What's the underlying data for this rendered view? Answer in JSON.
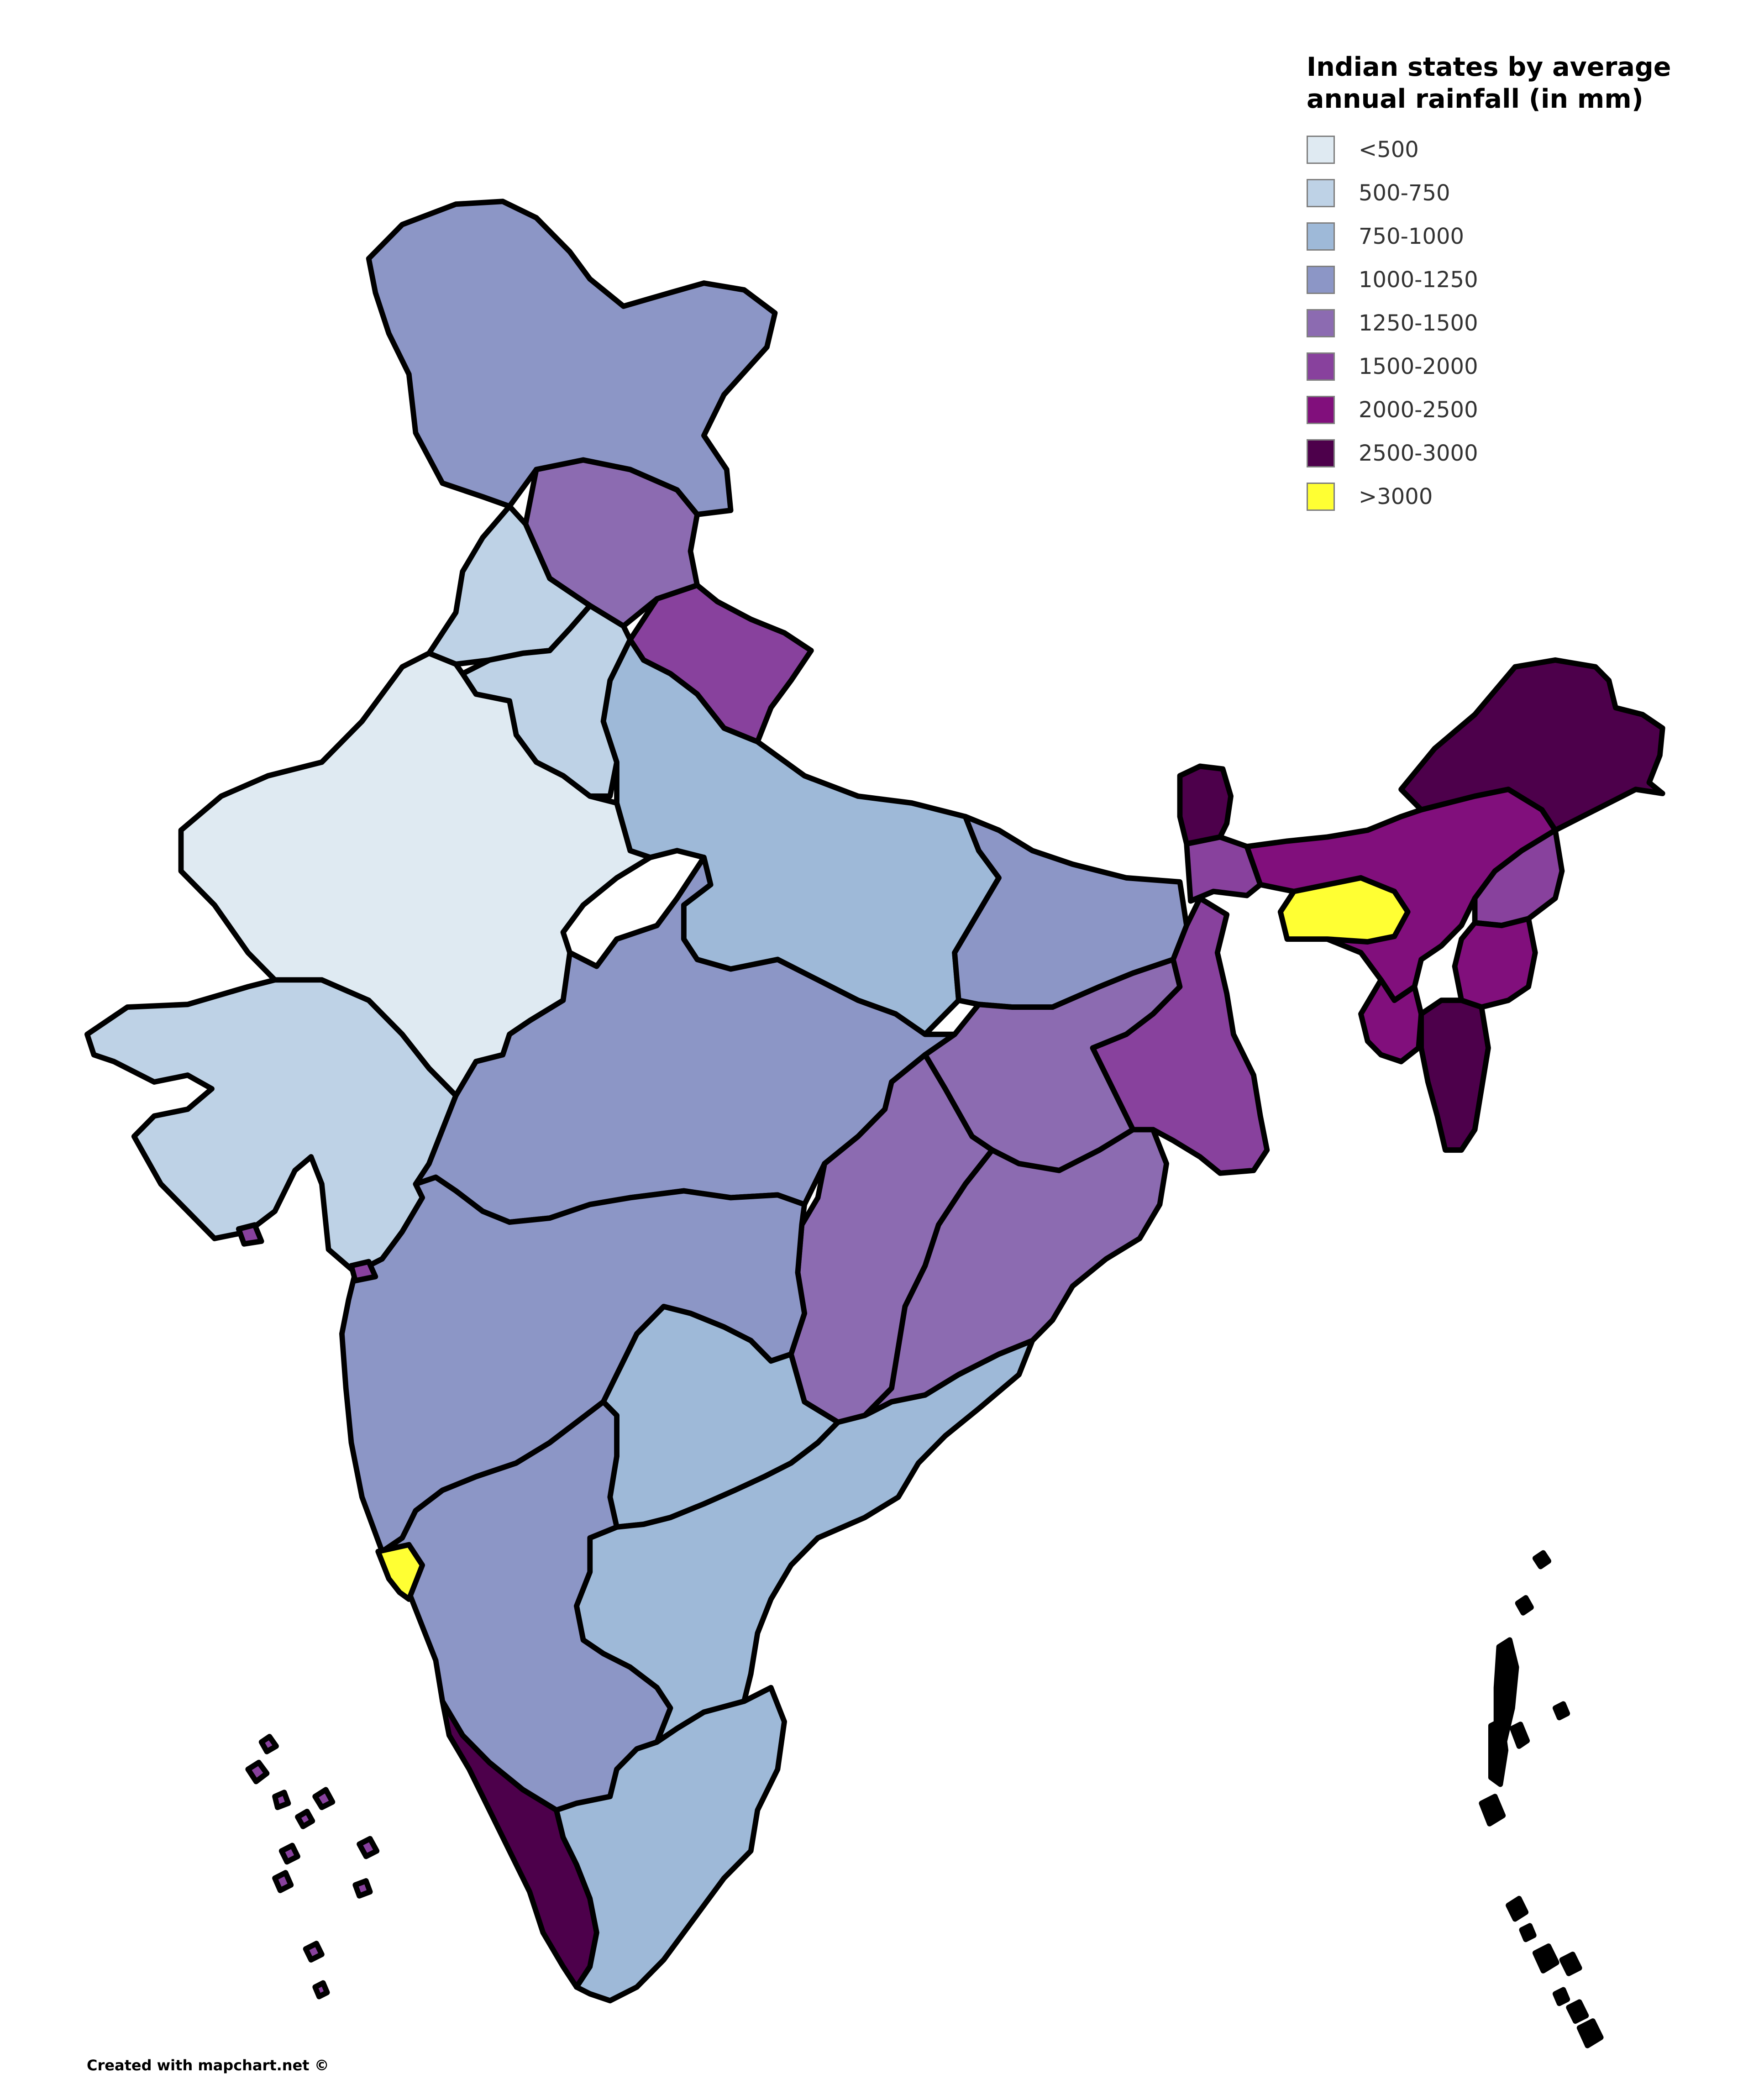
{
  "title": "Indian states by average annual rainfall (in mm)",
  "credit": "Created with mapchart.net ©",
  "legend": [
    {
      "label": "<500",
      "color": "#dfeaf2"
    },
    {
      "label": "500-750",
      "color": "#bed2e6"
    },
    {
      "label": "750-1000",
      "color": "#9eb9d8"
    },
    {
      "label": "1000-1250",
      "color": "#8c96c6"
    },
    {
      "label": "1250-1500",
      "color": "#8c6bb1"
    },
    {
      "label": "1500-2000",
      "color": "#88419d"
    },
    {
      "label": "2000-2500",
      "color": "#810f7c"
    },
    {
      "label": "2500-3000",
      "color": "#4d004b"
    },
    {
      "label": ">3000",
      "color": "#ffff33"
    }
  ],
  "regions": [
    {
      "name": "Jammu and Kashmir",
      "category": "1000-1250"
    },
    {
      "name": "Himachal Pradesh",
      "category": "1250-1500"
    },
    {
      "name": "Uttarakhand",
      "category": "1500-2000"
    },
    {
      "name": "Punjab",
      "category": "500-750"
    },
    {
      "name": "Haryana",
      "category": "500-750"
    },
    {
      "name": "Rajasthan",
      "category": "<500"
    },
    {
      "name": "Gujarat",
      "category": "500-750"
    },
    {
      "name": "Uttar Pradesh",
      "category": "750-1000"
    },
    {
      "name": "Madhya Pradesh",
      "category": "1000-1250"
    },
    {
      "name": "Bihar",
      "category": "1000-1250"
    },
    {
      "name": "Jharkhand",
      "category": "1250-1500"
    },
    {
      "name": "West Bengal",
      "category": "1500-2000"
    },
    {
      "name": "Chhattisgarh",
      "category": "1250-1500"
    },
    {
      "name": "Odisha",
      "category": "1250-1500"
    },
    {
      "name": "Maharashtra",
      "category": "1000-1250"
    },
    {
      "name": "Telangana",
      "category": "750-1000"
    },
    {
      "name": "Andhra Pradesh",
      "category": "750-1000"
    },
    {
      "name": "Karnataka",
      "category": "1000-1250"
    },
    {
      "name": "Goa",
      "category": ">3000"
    },
    {
      "name": "Kerala",
      "category": "2500-3000"
    },
    {
      "name": "Tamil Nadu",
      "category": "750-1000"
    },
    {
      "name": "Sikkim",
      "category": "2500-3000"
    },
    {
      "name": "Arunachal Pradesh",
      "category": "2500-3000"
    },
    {
      "name": "Assam",
      "category": "2000-2500"
    },
    {
      "name": "Meghalaya",
      "category": ">3000"
    },
    {
      "name": "Nagaland",
      "category": "1500-2000"
    },
    {
      "name": "Manipur",
      "category": "2000-2500"
    },
    {
      "name": "Tripura",
      "category": "2000-2500"
    },
    {
      "name": "Mizoram",
      "category": "2500-3000"
    },
    {
      "name": "Lakshadweep",
      "category": "1500-2000"
    },
    {
      "name": "Andaman and Nicobar Islands",
      "category": "2500-3000"
    }
  ]
}
